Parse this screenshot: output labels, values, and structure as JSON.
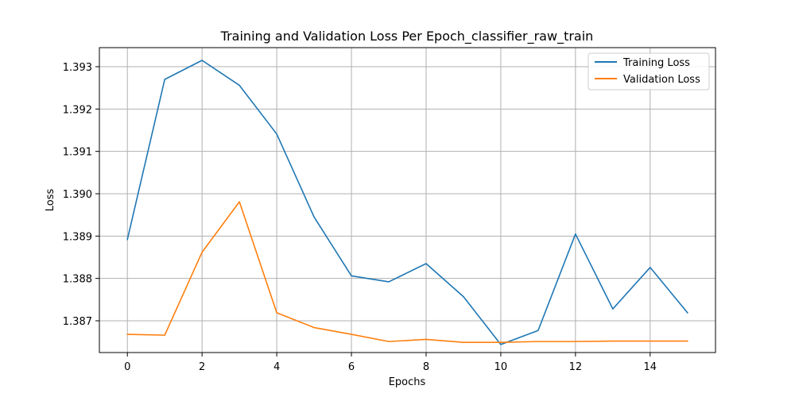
{
  "chart_data": {
    "type": "line",
    "title": "Training and Validation Loss Per Epoch_classifier_raw_train",
    "xlabel": "Epochs",
    "ylabel": "Loss",
    "x": [
      0,
      1,
      2,
      3,
      4,
      5,
      6,
      7,
      8,
      9,
      10,
      11,
      12,
      13,
      14,
      15
    ],
    "series": [
      {
        "name": "Training Loss",
        "color": "#1f77b4",
        "values": [
          1.38892,
          1.3927,
          1.39315,
          1.39256,
          1.39141,
          1.38945,
          1.38806,
          1.38792,
          1.38835,
          1.38757,
          1.38644,
          1.38677,
          1.38905,
          1.38728,
          1.38826,
          1.38719
        ]
      },
      {
        "name": "Validation Loss",
        "color": "#ff7f0e",
        "values": [
          1.38668,
          1.38666,
          1.38862,
          1.38981,
          1.38719,
          1.38684,
          1.38668,
          1.38651,
          1.38656,
          1.38649,
          1.38649,
          1.38651,
          1.38651,
          1.38652,
          1.38652,
          1.38652
        ]
      }
    ],
    "xlim": [
      -0.75,
      15.75
    ],
    "ylim": [
      1.38625,
      1.39345
    ],
    "xticks": [
      0,
      2,
      4,
      6,
      8,
      10,
      12,
      14
    ],
    "xtick_labels": [
      "0",
      "2",
      "4",
      "6",
      "8",
      "10",
      "12",
      "14"
    ],
    "yticks": [
      1.387,
      1.388,
      1.389,
      1.39,
      1.391,
      1.392,
      1.393
    ],
    "ytick_labels": [
      "1.387",
      "1.388",
      "1.389",
      "1.390",
      "1.391",
      "1.392",
      "1.393"
    ],
    "grid": true,
    "legend_position": "top-right"
  }
}
